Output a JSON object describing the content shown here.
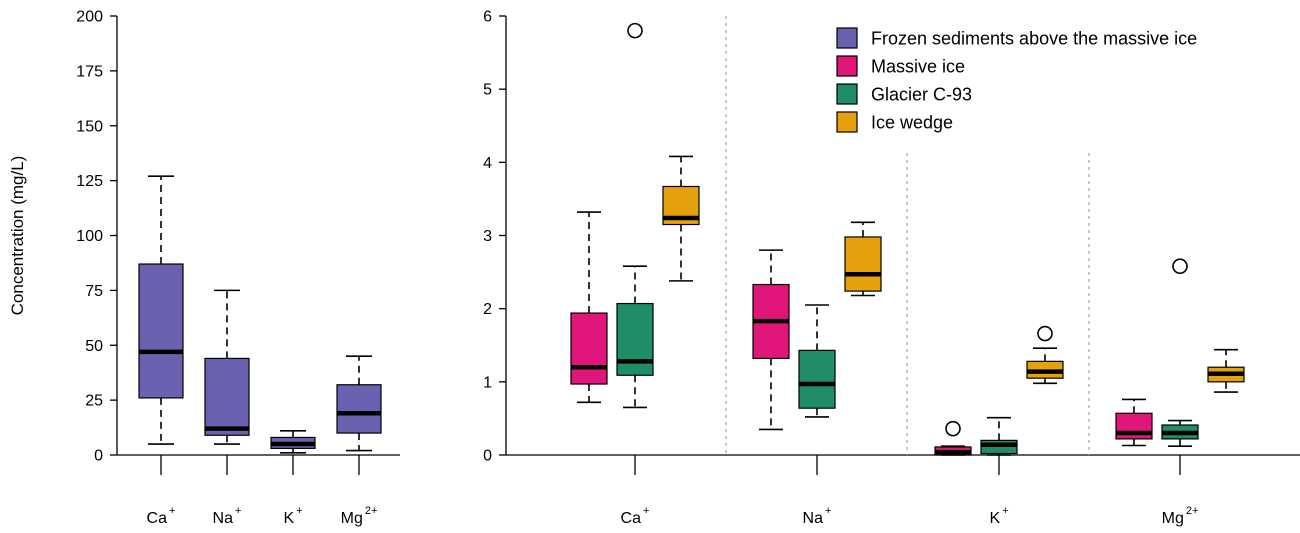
{
  "chart_data": [
    {
      "type": "boxplot",
      "ylabel": "Concentration (mg/L)",
      "ylim": [
        0,
        200
      ],
      "yticks": [
        0,
        25,
        50,
        75,
        100,
        125,
        150,
        175,
        200
      ],
      "categories": [
        {
          "base": "Ca",
          "sup": "+"
        },
        {
          "base": "Na",
          "sup": "+"
        },
        {
          "base": "K",
          "sup": "+"
        },
        {
          "base": "Mg",
          "sup": "2+"
        }
      ],
      "series": [
        {
          "legend": "Frozen sediments above the massive ice",
          "color": "#6a62b0",
          "boxes": [
            {
              "min": 5,
              "q1": 26,
              "median": 47,
              "q3": 87,
              "max": 127,
              "outliers": []
            },
            {
              "min": 5,
              "q1": 9,
              "median": 12,
              "q3": 44,
              "max": 75,
              "outliers": []
            },
            {
              "min": 1,
              "q1": 3,
              "median": 5,
              "q3": 8,
              "max": 11,
              "outliers": []
            },
            {
              "min": 2,
              "q1": 10,
              "median": 19,
              "q3": 32,
              "max": 45,
              "outliers": []
            }
          ]
        }
      ]
    },
    {
      "type": "boxplot",
      "ylabel": "",
      "ylim": [
        0,
        6
      ],
      "yticks": [
        0,
        1,
        2,
        3,
        4,
        5,
        6
      ],
      "categories": [
        {
          "base": "Ca",
          "sup": "+"
        },
        {
          "base": "Na",
          "sup": "+"
        },
        {
          "base": "K",
          "sup": "+"
        },
        {
          "base": "Mg",
          "sup": "2+"
        }
      ],
      "legend_position": "top-right",
      "series": [
        {
          "name": "Massive ice",
          "color": "#e0167a",
          "boxes": [
            {
              "min": 0.72,
              "q1": 0.97,
              "median": 1.2,
              "q3": 1.94,
              "max": 3.32,
              "outliers": []
            },
            {
              "min": 0.35,
              "q1": 1.32,
              "median": 1.83,
              "q3": 2.33,
              "max": 2.8,
              "outliers": []
            },
            {
              "min": 0.0,
              "q1": 0.0,
              "median": 0.04,
              "q3": 0.11,
              "max": 0.12,
              "outliers": [
                0.36
              ]
            },
            {
              "min": 0.13,
              "q1": 0.22,
              "median": 0.3,
              "q3": 0.57,
              "max": 0.76,
              "outliers": []
            }
          ]
        },
        {
          "name": "Glacier C-93",
          "color": "#1f8e66",
          "boxes": [
            {
              "min": 0.65,
              "q1": 1.09,
              "median": 1.28,
              "q3": 2.07,
              "max": 2.58,
              "outliers": [
                5.8
              ]
            },
            {
              "min": 0.52,
              "q1": 0.64,
              "median": 0.97,
              "q3": 1.43,
              "max": 2.05,
              "outliers": []
            },
            {
              "min": 0.0,
              "q1": 0.02,
              "median": 0.14,
              "q3": 0.2,
              "max": 0.51,
              "outliers": []
            },
            {
              "min": 0.12,
              "q1": 0.22,
              "median": 0.3,
              "q3": 0.41,
              "max": 0.47,
              "outliers": [
                2.58
              ]
            }
          ]
        },
        {
          "name": "Ice wedge",
          "color": "#e5a00d",
          "boxes": [
            {
              "min": 2.38,
              "q1": 3.15,
              "median": 3.24,
              "q3": 3.67,
              "max": 4.08,
              "outliers": []
            },
            {
              "min": 2.18,
              "q1": 2.24,
              "median": 2.47,
              "q3": 2.98,
              "max": 3.18,
              "outliers": []
            },
            {
              "min": 0.98,
              "q1": 1.05,
              "median": 1.14,
              "q3": 1.28,
              "max": 1.46,
              "outliers": [
                1.66
              ]
            },
            {
              "min": 0.86,
              "q1": 1.0,
              "median": 1.11,
              "q3": 1.2,
              "max": 1.44,
              "outliers": []
            }
          ]
        }
      ]
    }
  ]
}
